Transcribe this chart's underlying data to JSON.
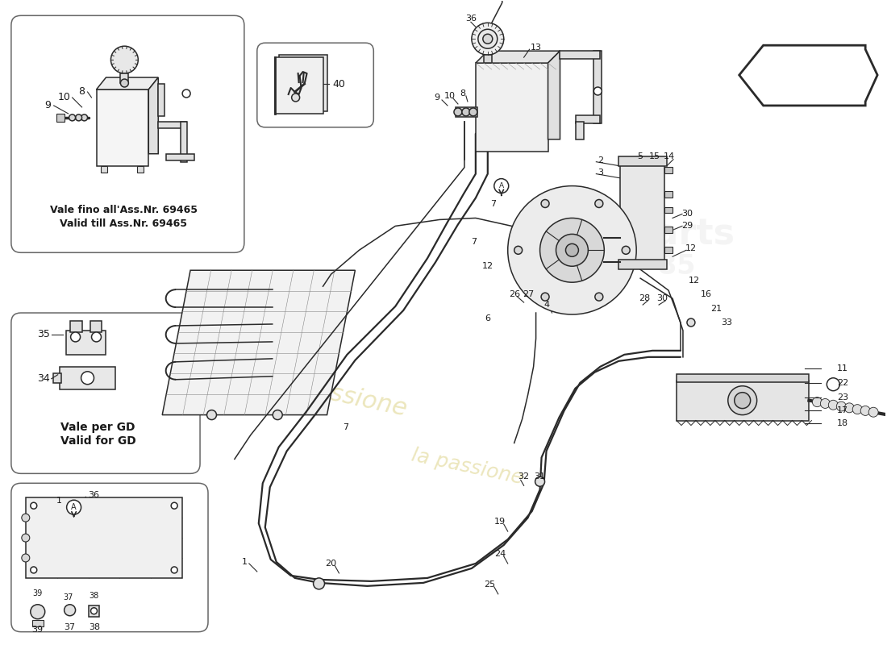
{
  "bg_color": "#ffffff",
  "line_color": "#2a2a2a",
  "light_gray": "#d8d8d8",
  "mid_gray": "#aaaaaa",
  "watermark_yellow": "#c8b840",
  "watermark_gray": "#c0c0c0",
  "box1_caption1": "Vale fino all'Ass.Nr. 69465",
  "box1_caption2": "Valid till Ass.Nr. 69465",
  "box3_caption1": "Vale per GD",
  "box3_caption2": "Valid for GD"
}
